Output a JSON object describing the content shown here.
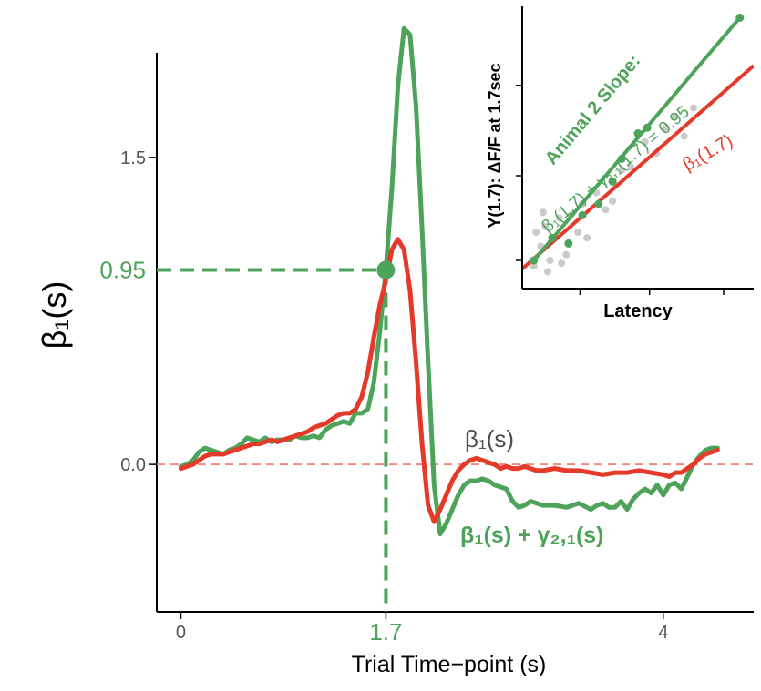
{
  "chart_data": [
    {
      "type": "line",
      "xlabel": "Trial Time−point (s)",
      "ylabel": "β₁(s)",
      "xlim": [
        -0.2,
        4.75
      ],
      "ylim": [
        -0.72,
        2.1
      ],
      "x_ticks": [
        {
          "value": 0,
          "label": "0"
        },
        {
          "value": 1.7,
          "label": "1.7"
        },
        {
          "value": 4,
          "label": "4"
        }
      ],
      "y_ticks": [
        {
          "value": 0,
          "label": "0.0"
        },
        {
          "value": 0.95,
          "label": "0.95"
        },
        {
          "value": 1.5,
          "label": "1.5"
        }
      ],
      "reference_lines": [
        {
          "axis": "y",
          "value": 0,
          "style": "dashed",
          "color": "#f08a80"
        },
        {
          "axis": "y",
          "value": 0.95,
          "style": "dashed",
          "color": "#4ea35a",
          "x_to": 1.7
        },
        {
          "axis": "x",
          "value": 1.7,
          "style": "dashed",
          "color": "#4ea35a",
          "y_to": 0.95
        }
      ],
      "highlight_point": {
        "x": 1.7,
        "y": 0.95,
        "color": "#4ea35a"
      },
      "series": [
        {
          "name": "β₁(s) + γ₂,₁(s)",
          "color": "#4ea35a",
          "points": [
            [
              0.0,
              -0.01
            ],
            [
              0.05,
              0.0
            ],
            [
              0.1,
              0.02
            ],
            [
              0.15,
              0.06
            ],
            [
              0.2,
              0.08
            ],
            [
              0.25,
              0.07
            ],
            [
              0.3,
              0.06
            ],
            [
              0.35,
              0.05
            ],
            [
              0.4,
              0.07
            ],
            [
              0.45,
              0.08
            ],
            [
              0.5,
              0.1
            ],
            [
              0.55,
              0.13
            ],
            [
              0.6,
              0.12
            ],
            [
              0.65,
              0.11
            ],
            [
              0.7,
              0.13
            ],
            [
              0.75,
              0.11
            ],
            [
              0.8,
              0.12
            ],
            [
              0.85,
              0.12
            ],
            [
              0.9,
              0.12
            ],
            [
              0.95,
              0.14
            ],
            [
              1.0,
              0.13
            ],
            [
              1.05,
              0.13
            ],
            [
              1.1,
              0.14
            ],
            [
              1.15,
              0.13
            ],
            [
              1.2,
              0.17
            ],
            [
              1.25,
              0.19
            ],
            [
              1.3,
              0.2
            ],
            [
              1.35,
              0.21
            ],
            [
              1.4,
              0.2
            ],
            [
              1.45,
              0.25
            ],
            [
              1.5,
              0.25
            ],
            [
              1.55,
              0.27
            ],
            [
              1.6,
              0.4
            ],
            [
              1.65,
              0.65
            ],
            [
              1.7,
              0.95
            ],
            [
              1.75,
              1.35
            ],
            [
              1.8,
              1.85
            ],
            [
              1.85,
              2.13
            ],
            [
              1.9,
              2.1
            ],
            [
              1.95,
              1.75
            ],
            [
              2.0,
              1.15
            ],
            [
              2.05,
              0.5
            ],
            [
              2.1,
              -0.1
            ],
            [
              2.15,
              -0.34
            ],
            [
              2.2,
              -0.29
            ],
            [
              2.25,
              -0.22
            ],
            [
              2.3,
              -0.15
            ],
            [
              2.35,
              -0.1
            ],
            [
              2.4,
              -0.08
            ],
            [
              2.45,
              -0.08
            ],
            [
              2.5,
              -0.07
            ],
            [
              2.55,
              -0.08
            ],
            [
              2.6,
              -0.1
            ],
            [
              2.7,
              -0.12
            ],
            [
              2.75,
              -0.18
            ],
            [
              2.8,
              -0.21
            ],
            [
              2.85,
              -0.2
            ],
            [
              2.9,
              -0.18
            ],
            [
              2.95,
              -0.19
            ],
            [
              3.0,
              -0.2
            ],
            [
              3.1,
              -0.2
            ],
            [
              3.2,
              -0.21
            ],
            [
              3.3,
              -0.19
            ],
            [
              3.4,
              -0.22
            ],
            [
              3.45,
              -0.2
            ],
            [
              3.5,
              -0.19
            ],
            [
              3.55,
              -0.21
            ],
            [
              3.6,
              -0.21
            ],
            [
              3.65,
              -0.18
            ],
            [
              3.7,
              -0.22
            ],
            [
              3.75,
              -0.17
            ],
            [
              3.8,
              -0.14
            ],
            [
              3.85,
              -0.12
            ],
            [
              3.9,
              -0.14
            ],
            [
              3.95,
              -0.1
            ],
            [
              4.0,
              -0.15
            ],
            [
              4.05,
              -0.1
            ],
            [
              4.1,
              -0.09
            ],
            [
              4.15,
              -0.12
            ],
            [
              4.2,
              -0.06
            ],
            [
              4.25,
              0.0
            ],
            [
              4.3,
              0.04
            ],
            [
              4.35,
              0.07
            ],
            [
              4.4,
              0.08
            ],
            [
              4.45,
              0.08
            ]
          ]
        },
        {
          "name": "β₁(s)",
          "color": "#e53a2a",
          "points": [
            [
              0.0,
              -0.02
            ],
            [
              0.05,
              -0.01
            ],
            [
              0.1,
              0.0
            ],
            [
              0.15,
              0.02
            ],
            [
              0.2,
              0.04
            ],
            [
              0.25,
              0.05
            ],
            [
              0.3,
              0.05
            ],
            [
              0.35,
              0.05
            ],
            [
              0.4,
              0.06
            ],
            [
              0.45,
              0.07
            ],
            [
              0.5,
              0.08
            ],
            [
              0.55,
              0.09
            ],
            [
              0.6,
              0.1
            ],
            [
              0.65,
              0.1
            ],
            [
              0.7,
              0.11
            ],
            [
              0.75,
              0.12
            ],
            [
              0.8,
              0.11
            ],
            [
              0.85,
              0.12
            ],
            [
              0.9,
              0.13
            ],
            [
              0.95,
              0.14
            ],
            [
              1.0,
              0.15
            ],
            [
              1.05,
              0.16
            ],
            [
              1.1,
              0.18
            ],
            [
              1.15,
              0.19
            ],
            [
              1.2,
              0.2
            ],
            [
              1.25,
              0.22
            ],
            [
              1.3,
              0.24
            ],
            [
              1.35,
              0.25
            ],
            [
              1.4,
              0.25
            ],
            [
              1.45,
              0.27
            ],
            [
              1.5,
              0.33
            ],
            [
              1.55,
              0.45
            ],
            [
              1.6,
              0.62
            ],
            [
              1.65,
              0.78
            ],
            [
              1.7,
              0.9
            ],
            [
              1.75,
              1.05
            ],
            [
              1.8,
              1.1
            ],
            [
              1.85,
              1.05
            ],
            [
              1.9,
              0.85
            ],
            [
              1.95,
              0.5
            ],
            [
              2.0,
              0.1
            ],
            [
              2.05,
              -0.2
            ],
            [
              2.1,
              -0.28
            ],
            [
              2.15,
              -0.22
            ],
            [
              2.2,
              -0.15
            ],
            [
              2.25,
              -0.08
            ],
            [
              2.3,
              -0.03
            ],
            [
              2.35,
              0.0
            ],
            [
              2.4,
              0.02
            ],
            [
              2.45,
              0.03
            ],
            [
              2.5,
              0.02
            ],
            [
              2.55,
              0.01
            ],
            [
              2.6,
              0.0
            ],
            [
              2.65,
              -0.02
            ],
            [
              2.7,
              -0.01
            ],
            [
              2.75,
              -0.02
            ],
            [
              2.8,
              -0.02
            ],
            [
              2.85,
              -0.01
            ],
            [
              2.9,
              -0.02
            ],
            [
              2.95,
              -0.03
            ],
            [
              3.0,
              -0.03
            ],
            [
              3.1,
              -0.02
            ],
            [
              3.2,
              -0.03
            ],
            [
              3.3,
              -0.03
            ],
            [
              3.4,
              -0.04
            ],
            [
              3.5,
              -0.05
            ],
            [
              3.6,
              -0.04
            ],
            [
              3.7,
              -0.04
            ],
            [
              3.8,
              -0.03
            ],
            [
              3.9,
              -0.04
            ],
            [
              4.0,
              -0.05
            ],
            [
              4.05,
              -0.06
            ],
            [
              4.1,
              -0.04
            ],
            [
              4.15,
              -0.04
            ],
            [
              4.2,
              -0.02
            ],
            [
              4.25,
              0.0
            ],
            [
              4.3,
              0.03
            ],
            [
              4.35,
              0.05
            ],
            [
              4.4,
              0.06
            ],
            [
              4.45,
              0.07
            ]
          ]
        }
      ],
      "annotations": [
        {
          "text": "β₁(s)",
          "x": 2.3,
          "y": 0.12,
          "color": "#4d4d4d"
        },
        {
          "text": "β₁(s) + γ₂,₁(s)",
          "x": 2.3,
          "y": -0.36,
          "color": "#4ea35a"
        }
      ]
    },
    {
      "type": "scatter",
      "xlabel": "Latency",
      "ylabel": "Y(1.7):  ΔF/F at 1.7sec",
      "xlim": [
        0,
        10
      ],
      "ylim": [
        0,
        10
      ],
      "grid": false,
      "scatter_gray": [
        [
          0.5,
          0.8
        ],
        [
          0.8,
          1.5
        ],
        [
          1.0,
          2.2
        ],
        [
          1.2,
          1.0
        ],
        [
          1.4,
          1.8
        ],
        [
          1.6,
          2.5
        ],
        [
          1.9,
          1.2
        ],
        [
          2.1,
          2.6
        ],
        [
          2.4,
          2.0
        ],
        [
          0.6,
          2.0
        ],
        [
          1.1,
          0.6
        ],
        [
          2.6,
          3.0
        ],
        [
          3.2,
          3.4
        ],
        [
          3.6,
          2.8
        ],
        [
          4.0,
          3.7
        ],
        [
          4.3,
          4.2
        ],
        [
          4.7,
          4.3
        ],
        [
          5.3,
          5.2
        ],
        [
          5.8,
          4.8
        ],
        [
          6.2,
          5.7
        ],
        [
          2.8,
          1.8
        ],
        [
          3.9,
          3.1
        ],
        [
          1.7,
          0.9
        ],
        [
          0.9,
          2.7
        ],
        [
          6.6,
          6.1
        ],
        [
          7.0,
          5.4
        ],
        [
          7.4,
          6.4
        ]
      ],
      "scatter_green": [
        [
          0.5,
          1.0
        ],
        [
          1.3,
          1.8
        ],
        [
          2.0,
          1.6
        ],
        [
          2.6,
          2.6
        ],
        [
          3.3,
          3.0
        ],
        [
          3.9,
          3.8
        ],
        [
          4.3,
          4.6
        ],
        [
          5.0,
          5.5
        ],
        [
          5.4,
          5.7
        ],
        [
          9.4,
          9.6
        ]
      ],
      "lines": [
        {
          "name": "β₁(1.7)",
          "color": "#e53a2a",
          "from": [
            0,
            0.7
          ],
          "to": [
            10,
            7.9
          ]
        },
        {
          "name": "β₁(1.7) + γ₂,₁(1.7) = 0.95",
          "color": "#4ea35a",
          "from": [
            0.5,
            1.0
          ],
          "to": [
            9.4,
            9.6
          ]
        }
      ],
      "annotations": [
        {
          "text": "Animal 2 Slope:",
          "color": "#4ea35a"
        },
        {
          "text": "β₁(1.7) + γ₂,₁(1.7) = 0.95",
          "color": "#4ea35a"
        },
        {
          "text": "β₁(1.7)",
          "color": "#e53a2a"
        }
      ]
    }
  ]
}
